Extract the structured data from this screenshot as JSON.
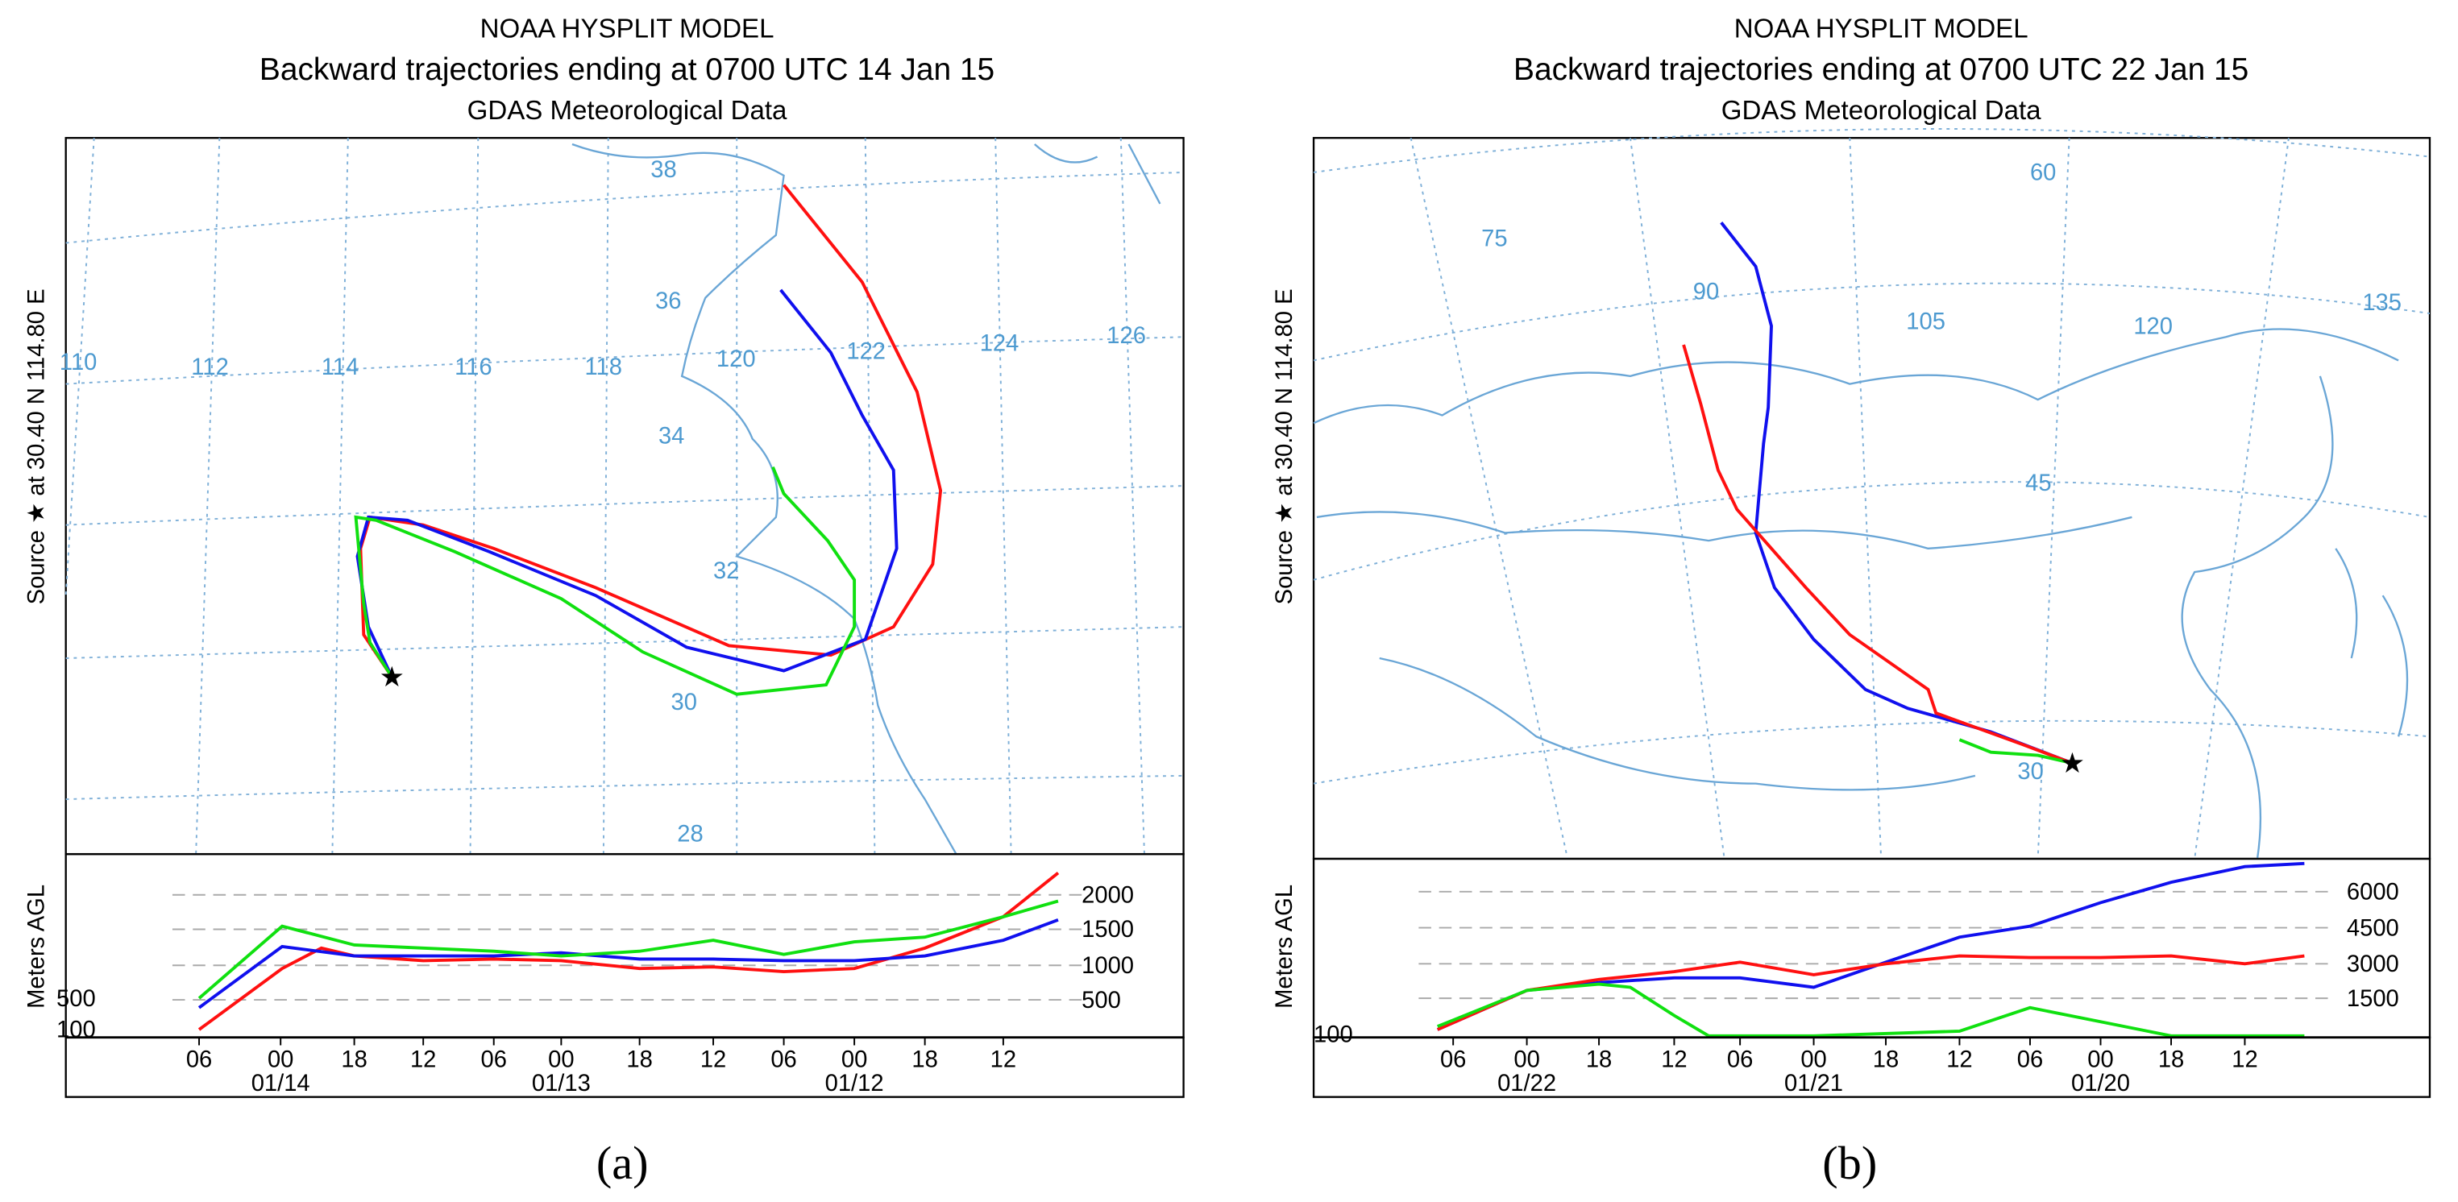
{
  "panels": [
    {
      "title": "NOAA HYSPLIT MODEL",
      "subtitle": "Backward trajectories ending at 0700 UTC 14 Jan 15",
      "data_source": "GDAS Meteorological Data",
      "source_label": "Source ★  at  30.40 N 114.80 E",
      "height_label": "Meters AGL",
      "map_labels": [
        "110",
        "112",
        "114",
        "116",
        "118",
        "120",
        "122",
        "124",
        "126",
        "38",
        "36",
        "34",
        "32",
        "30",
        "28"
      ],
      "height_ticks": [
        "2000",
        "1500",
        "1000",
        "500"
      ],
      "height_start_labels": [
        "500",
        "100"
      ],
      "time_labels": [
        "06",
        "00",
        "18",
        "12",
        "06",
        "00",
        "18",
        "12",
        "06",
        "00",
        "18",
        "12"
      ],
      "date_labels": [
        "01/14",
        "01/13",
        "01/12"
      ],
      "caption": "(a)"
    },
    {
      "title": "NOAA HYSPLIT MODEL",
      "subtitle": "Backward trajectories ending at 0700 UTC 22 Jan 15",
      "data_source": "GDAS Meteorological Data",
      "source_label": "Source ★  at  30.40 N 114.80 E",
      "height_label": "Meters AGL",
      "map_labels": [
        "60",
        "75",
        "90",
        "105",
        "120",
        "135",
        "45",
        "30"
      ],
      "height_ticks": [
        "6000",
        "4500",
        "3000",
        "1500"
      ],
      "height_start_labels": [
        "100"
      ],
      "time_labels": [
        "06",
        "00",
        "18",
        "12",
        "06",
        "00",
        "18",
        "12",
        "06",
        "00",
        "18",
        "12"
      ],
      "date_labels": [
        "01/22",
        "01/21",
        "01/20"
      ],
      "caption": "(b)"
    }
  ]
}
